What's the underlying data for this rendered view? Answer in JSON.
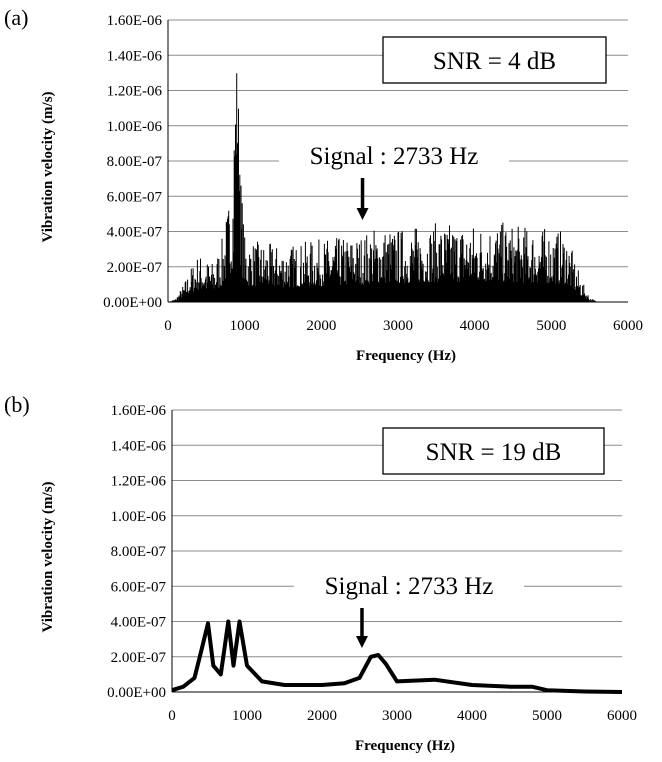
{
  "chart_data": [
    {
      "type": "line",
      "panel_label": "(a)",
      "xlabel": "Frequency  (Hz)",
      "ylabel": "Vibration  velocity (m/s)",
      "xlim": [
        0,
        6000
      ],
      "ylim": [
        0,
        1.6e-06
      ],
      "x_ticks": [
        "0",
        "1000",
        "2000",
        "3000",
        "4000",
        "5000",
        "6000"
      ],
      "y_ticks": [
        "0.00E+00",
        "2.00E-07",
        "4.00E-07",
        "6.00E-07",
        "8.00E-07",
        "1.00E-06",
        "1.20E-06",
        "1.40E-06",
        "1.60E-06"
      ],
      "grid": "horizontal",
      "box_annotation": "SNR = 4 dB",
      "signal_annotation": "Signal : 2733 Hz",
      "signal_frequency": 2733,
      "series": [
        {
          "x": [
            0,
            100,
            200,
            300,
            400,
            500,
            600,
            700,
            800,
            850,
            900,
            950,
            1000,
            1100,
            1500,
            2000,
            2500,
            2700,
            3000,
            3500,
            4000,
            4300,
            4500,
            5000,
            5200,
            5300,
            5400,
            5500,
            5600
          ],
          "y": [
            0,
            2e-08,
            1e-07,
            2e-07,
            2.8e-07,
            2.4e-07,
            2.3e-07,
            3.5e-07,
            6e-07,
            8e-07,
            1.42e-06,
            7.5e-07,
            3.8e-07,
            3.5e-07,
            3.2e-07,
            3.6e-07,
            3.8e-07,
            4.3e-07,
            4.2e-07,
            4.5e-07,
            4.5e-07,
            4.6e-07,
            4.4e-07,
            4.2e-07,
            4e-07,
            2.5e-07,
            1.2e-07,
            3e-08,
            0
          ]
        }
      ]
    },
    {
      "type": "line",
      "panel_label": "(b)",
      "xlabel": "Frequency  (Hz)",
      "ylabel": "Vibration  velocity (m/s)",
      "xlim": [
        0,
        6000
      ],
      "ylim": [
        0,
        1.6e-06
      ],
      "x_ticks": [
        "0",
        "1000",
        "2000",
        "3000",
        "4000",
        "5000",
        "6000"
      ],
      "y_ticks": [
        "0.00E+00",
        "2.00E-07",
        "4.00E-07",
        "6.00E-07",
        "8.00E-07",
        "1.00E-06",
        "1.20E-06",
        "1.40E-06",
        "1.60E-06"
      ],
      "grid": "horizontal",
      "box_annotation": "SNR = 19 dB",
      "signal_annotation": "Signal : 2733 Hz",
      "signal_frequency": 2733,
      "series": [
        {
          "x": [
            0,
            150,
            300,
            400,
            480,
            550,
            650,
            750,
            820,
            900,
            1000,
            1200,
            1500,
            2000,
            2300,
            2500,
            2650,
            2750,
            2850,
            3000,
            3500,
            4000,
            4500,
            4800,
            5000,
            5500,
            6000
          ],
          "y": [
            1e-08,
            3e-08,
            8e-08,
            2.5e-07,
            3.9e-07,
            1.5e-07,
            1e-07,
            4e-07,
            1.5e-07,
            4e-07,
            1.5e-07,
            6e-08,
            4e-08,
            4e-08,
            5e-08,
            8e-08,
            2e-07,
            2.1e-07,
            1.6e-07,
            6e-08,
            7e-08,
            4e-08,
            3e-08,
            3e-08,
            1e-08,
            3e-09,
            0
          ]
        }
      ]
    }
  ]
}
